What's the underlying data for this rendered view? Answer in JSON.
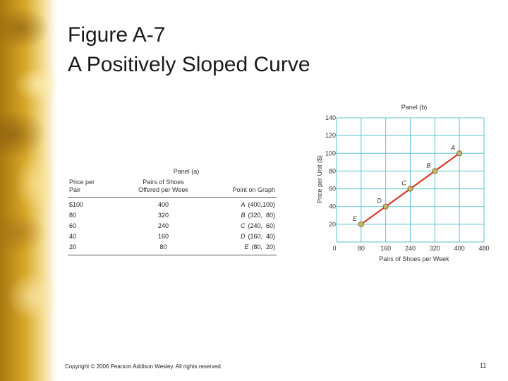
{
  "slide": {
    "title_line1": "Figure A-7",
    "title_line2": "A Positively Sloped Curve",
    "footer": "Copyright © 2006 Pearson Addison Wesley. All rights reserved.",
    "page_number": "11"
  },
  "panel_a": {
    "title": "Panel (a)",
    "headers": [
      "Price per\nPair",
      "Pairs of Shoes\nOffered per Week",
      "Point on Graph"
    ],
    "rows": [
      {
        "price": "$100",
        "pairs": "400",
        "letter": "A",
        "point": "(400,100)"
      },
      {
        "price": "80",
        "pairs": "320",
        "letter": "B",
        "point": "(320,  80)"
      },
      {
        "price": "60",
        "pairs": "240",
        "letter": "C",
        "point": "(240,  60)"
      },
      {
        "price": "40",
        "pairs": "160",
        "letter": "D",
        "point": "(160,  40)"
      },
      {
        "price": "20",
        "pairs": "80",
        "letter": "E",
        "point": "(80,  20)"
      }
    ]
  },
  "chart_data": {
    "type": "line",
    "title": "Panel (b)",
    "xlabel": "Pairs of Shoes per Week",
    "ylabel": "Price per Unit ($)",
    "xlim": [
      0,
      480
    ],
    "ylim": [
      0,
      140
    ],
    "xticks": [
      0,
      80,
      160,
      240,
      320,
      400,
      480
    ],
    "yticks": [
      20,
      40,
      60,
      80,
      100,
      120,
      140
    ],
    "grid": true,
    "series": [
      {
        "points": [
          {
            "label": "E",
            "x": 80,
            "y": 20
          },
          {
            "label": "D",
            "x": 160,
            "y": 40
          },
          {
            "label": "C",
            "x": 240,
            "y": 60
          },
          {
            "label": "B",
            "x": 320,
            "y": 80
          },
          {
            "label": "A",
            "x": 400,
            "y": 100
          }
        ]
      }
    ],
    "colors": {
      "line": "#d83a2a",
      "grid": "#5ec3cf",
      "point": "#c9b56a",
      "point_stroke": "#6b5a20"
    }
  }
}
